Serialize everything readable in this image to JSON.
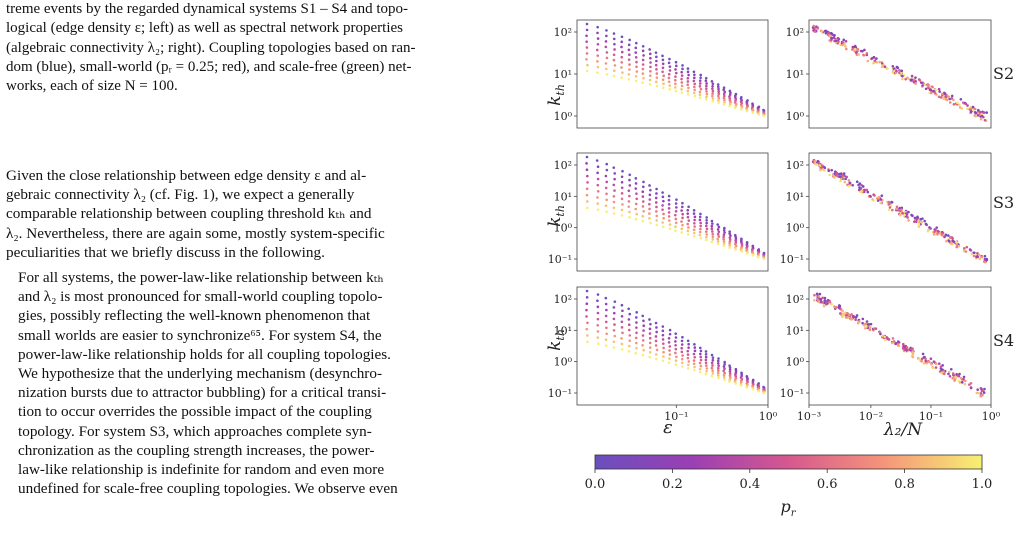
{
  "caption_lines": [
    "treme events by the regarded dynamical systems S1 – S4 and topo-",
    "logical (edge density ε; left) as well as spectral network properties",
    "(algebraic connectivity λ₂; right). Coupling topologies based on ran-",
    "dom (blue), small-world (pᵣ = 0.25; red), and scale-free (green) net-",
    "works, each of size N = 100."
  ],
  "para1_lines": [
    "Given the close relationship between edge density ε and al-",
    "gebraic connectivity λ₂ (cf. Fig. 1), we expect a generally",
    "comparable relationship between coupling threshold kₜₕ and",
    "λ₂. Nevertheless, there are again some, mostly system-specific",
    "peculiarities that we briefly discuss in the following."
  ],
  "para2_lines": [
    "For all systems, the power-law-like relationship between kₜₕ",
    "and λ₂ is most pronounced for small-world coupling topolo-",
    "gies, possibly reflecting the well-known phenomenon that",
    "small worlds are easier to synchronize⁶⁵. For system S4, the",
    "power-law-like relationship holds for all coupling topologies.",
    "We hypothesize that the underlying mechanism (desynchro-",
    "nization bursts due to attractor bubbling) for a critical transi-",
    "tion to occur overrides the possible impact of the coupling",
    "topology. For system S3, which approaches complete syn-",
    "chronization as the coupling strength increases, the power-",
    "law-like relationship is indefinite for random and even more",
    "undefined for scale-free coupling topologies. We observe even"
  ],
  "figure": {
    "y_axis_label": "k_th",
    "x_axis_label_left": "ε",
    "x_axis_label_right": "λ₂/N",
    "row_labels": [
      "S2",
      "S3",
      "S4"
    ],
    "colorbar_label": "p_r",
    "colorbar_ticks": [
      "0.0",
      "0.2",
      "0.4",
      "0.6",
      "0.8",
      "1.0"
    ],
    "colormap": [
      "#0d0887",
      "#6a00a8",
      "#b12a90",
      "#e16462",
      "#fca636",
      "#f0f921"
    ]
  },
  "chart_data": {
    "type": "scatter",
    "panels": [
      {
        "row": "S2",
        "x": "ε",
        "y": "k_th",
        "x_scale": "log",
        "y_scale": "log",
        "y_ticks": [
          "10⁰",
          "10¹",
          "10²"
        ]
      },
      {
        "row": "S2",
        "x": "λ₂/N",
        "y": "k_th",
        "x_scale": "log",
        "y_scale": "log",
        "y_ticks": [
          "10⁰",
          "10¹",
          "10²"
        ]
      },
      {
        "row": "S3",
        "x": "ε",
        "y": "k_th",
        "x_scale": "log",
        "y_scale": "log",
        "y_ticks": [
          "10⁻¹",
          "10⁰",
          "10¹",
          "10²"
        ]
      },
      {
        "row": "S3",
        "x": "λ₂/N",
        "y": "k_th",
        "x_scale": "log",
        "y_scale": "log",
        "y_ticks": [
          "10⁻¹",
          "10⁰",
          "10¹",
          "10²"
        ]
      },
      {
        "row": "S4",
        "x": "ε",
        "y": "k_th",
        "x_scale": "log",
        "y_scale": "log",
        "y_ticks": [
          "10⁻¹",
          "10⁰",
          "10¹",
          "10²"
        ],
        "x_ticks": [
          "10⁻¹",
          "10⁰"
        ]
      },
      {
        "row": "S4",
        "x": "λ₂/N",
        "y": "k_th",
        "x_scale": "log",
        "y_scale": "log",
        "y_ticks": [
          "10⁻¹",
          "10⁰",
          "10¹",
          "10²"
        ],
        "x_ticks": [
          "10⁻³",
          "10⁻²",
          "10⁻¹",
          "10⁰"
        ]
      }
    ],
    "color_by": "p_r",
    "color_range": [
      0.0,
      1.0
    ]
  }
}
